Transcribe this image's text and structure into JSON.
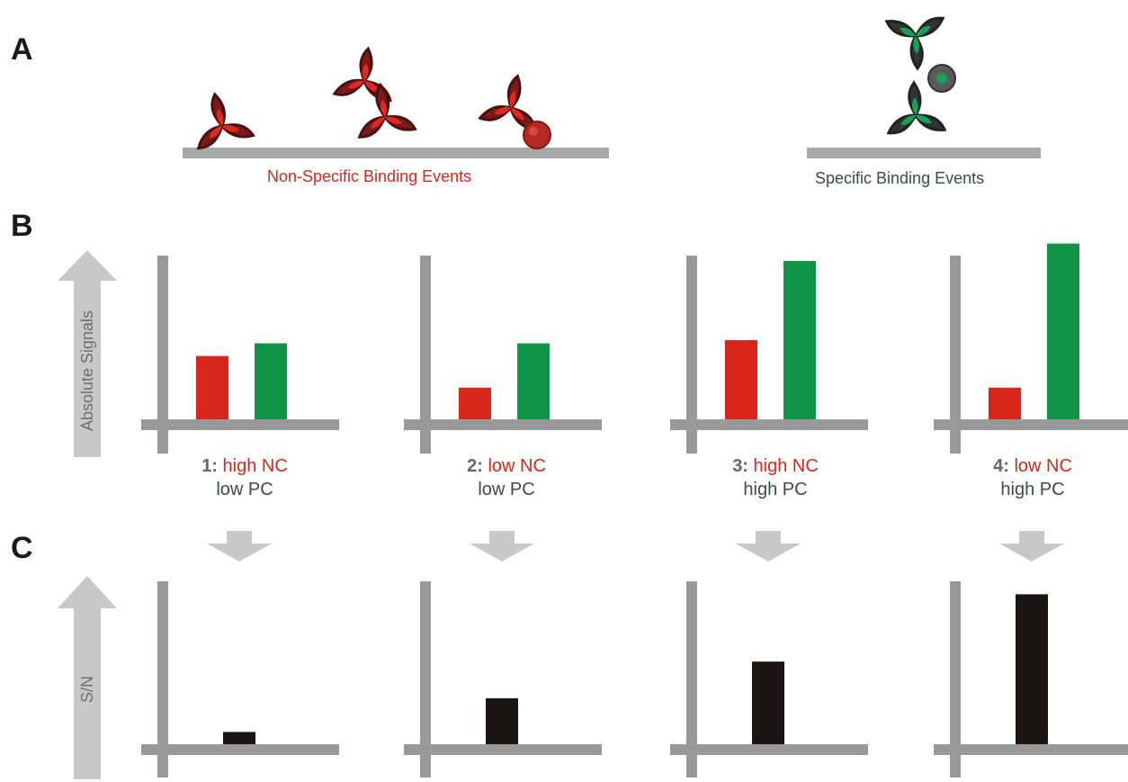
{
  "panels": {
    "a": "A",
    "b": "B",
    "c": "C"
  },
  "captions": {
    "nonspecific": "Non-Specific Binding Events",
    "specific": "Specific Binding Events"
  },
  "axis_labels": {
    "absolute": "Absolute Signals",
    "sn": "S/N"
  },
  "colors": {
    "negative": "#d9261c",
    "positive": "#109447",
    "ratio": "#1a1414",
    "axis": "#999999",
    "arrow": "#c8c8c8"
  },
  "scenarios": [
    {
      "num": "1:",
      "nc": "high NC",
      "pc": "low PC"
    },
    {
      "num": "2:",
      "nc": "low NC",
      "pc": "low PC"
    },
    {
      "num": "3:",
      "nc": "high NC",
      "pc": "high PC"
    },
    {
      "num": "4:",
      "nc": "low NC",
      "pc": "high PC"
    }
  ],
  "chart_data": [
    {
      "type": "bar",
      "title": "",
      "categories": [
        "1",
        "2",
        "3",
        "4"
      ],
      "series": [
        {
          "values": [
            0.4,
            0.2,
            0.5,
            0.2
          ]
        },
        {
          "values": [
            0.48,
            0.48,
            1.0,
            1.11
          ]
        }
      ],
      "ylim": [
        0,
        1.15
      ]
    },
    {
      "type": "bar",
      "title": "",
      "categories": [
        "1",
        "2",
        "3",
        "4"
      ],
      "values": [
        0.08,
        0.3,
        0.54,
        0.98
      ],
      "ylim": [
        0,
        1.05
      ]
    }
  ]
}
